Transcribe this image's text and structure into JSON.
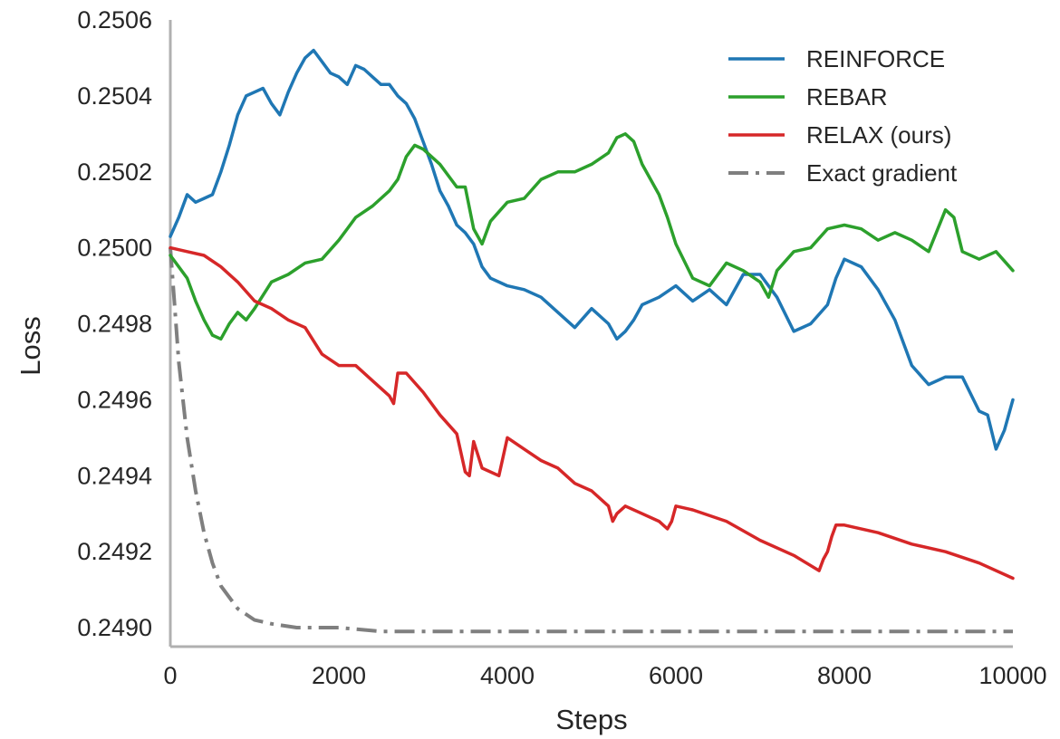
{
  "chart_data": {
    "type": "line",
    "title": "",
    "xlabel": "Steps",
    "ylabel": "Loss",
    "xlim": [
      0,
      10000
    ],
    "ylim": [
      0.24895,
      0.2506
    ],
    "xticks": [
      "0",
      "2000",
      "4000",
      "6000",
      "8000",
      "10000"
    ],
    "xtick_values": [
      0,
      2000,
      4000,
      6000,
      8000,
      10000
    ],
    "yticks": [
      "0.2490",
      "0.2492",
      "0.2494",
      "0.2496",
      "0.2498",
      "0.2500",
      "0.2502",
      "0.2504",
      "0.2506"
    ],
    "ytick_values": [
      0.249,
      0.2492,
      0.2494,
      0.2496,
      0.2498,
      0.25,
      0.2502,
      0.2504,
      0.2506
    ],
    "grid": false,
    "legend_position": "top-right",
    "series": [
      {
        "name": "REINFORCE",
        "color": "#1f77b4",
        "style": "solid",
        "x": [
          0,
          100,
          200,
          300,
          400,
          500,
          600,
          700,
          800,
          900,
          1000,
          1100,
          1200,
          1300,
          1400,
          1500,
          1600,
          1700,
          1800,
          1900,
          2000,
          2100,
          2200,
          2300,
          2400,
          2500,
          2600,
          2700,
          2800,
          2900,
          3000,
          3100,
          3200,
          3300,
          3400,
          3500,
          3600,
          3700,
          3800,
          3900,
          4000,
          4200,
          4400,
          4600,
          4800,
          5000,
          5200,
          5300,
          5400,
          5500,
          5600,
          5800,
          6000,
          6200,
          6400,
          6600,
          6800,
          7000,
          7200,
          7400,
          7600,
          7800,
          7900,
          8000,
          8200,
          8400,
          8600,
          8800,
          9000,
          9200,
          9400,
          9600,
          9700,
          9800,
          9900,
          10000
        ],
        "values": [
          0.25003,
          0.25008,
          0.25014,
          0.25012,
          0.25013,
          0.25014,
          0.2502,
          0.25027,
          0.25035,
          0.2504,
          0.25041,
          0.25042,
          0.25038,
          0.25035,
          0.25041,
          0.25046,
          0.2505,
          0.25052,
          0.25049,
          0.25046,
          0.25045,
          0.25043,
          0.25048,
          0.25047,
          0.25045,
          0.25043,
          0.25043,
          0.2504,
          0.25038,
          0.25034,
          0.25028,
          0.25022,
          0.25015,
          0.25011,
          0.25006,
          0.25004,
          0.25001,
          0.24995,
          0.24992,
          0.24991,
          0.2499,
          0.24989,
          0.24987,
          0.24983,
          0.24979,
          0.24984,
          0.2498,
          0.24976,
          0.24978,
          0.24981,
          0.24985,
          0.24987,
          0.2499,
          0.24986,
          0.24989,
          0.24985,
          0.24993,
          0.24993,
          0.24987,
          0.24978,
          0.2498,
          0.24985,
          0.24992,
          0.24997,
          0.24995,
          0.24989,
          0.24981,
          0.24969,
          0.24964,
          0.24966,
          0.24966,
          0.24957,
          0.24956,
          0.24947,
          0.24952,
          0.2496
        ]
      },
      {
        "name": "REBAR",
        "color": "#2ca02c",
        "style": "solid",
        "x": [
          0,
          100,
          200,
          300,
          400,
          500,
          600,
          700,
          800,
          900,
          1000,
          1200,
          1400,
          1600,
          1800,
          2000,
          2200,
          2400,
          2600,
          2700,
          2800,
          2900,
          3000,
          3200,
          3400,
          3500,
          3600,
          3700,
          3800,
          4000,
          4200,
          4400,
          4600,
          4800,
          5000,
          5200,
          5300,
          5400,
          5500,
          5600,
          5800,
          5900,
          6000,
          6200,
          6400,
          6600,
          6800,
          7000,
          7100,
          7200,
          7400,
          7600,
          7800,
          8000,
          8200,
          8400,
          8600,
          8800,
          9000,
          9200,
          9300,
          9400,
          9600,
          9800,
          10000
        ],
        "values": [
          0.24998,
          0.24995,
          0.24992,
          0.24986,
          0.24981,
          0.24977,
          0.24976,
          0.2498,
          0.24983,
          0.24981,
          0.24984,
          0.24991,
          0.24993,
          0.24996,
          0.24997,
          0.25002,
          0.25008,
          0.25011,
          0.25015,
          0.25018,
          0.25024,
          0.25027,
          0.25026,
          0.25022,
          0.25016,
          0.25016,
          0.25005,
          0.25001,
          0.25007,
          0.25012,
          0.25013,
          0.25018,
          0.2502,
          0.2502,
          0.25022,
          0.25025,
          0.25029,
          0.2503,
          0.25028,
          0.25022,
          0.25014,
          0.25008,
          0.25001,
          0.24992,
          0.2499,
          0.24996,
          0.24994,
          0.24991,
          0.24987,
          0.24994,
          0.24999,
          0.25,
          0.25005,
          0.25006,
          0.25005,
          0.25002,
          0.25004,
          0.25002,
          0.24999,
          0.2501,
          0.25008,
          0.24999,
          0.24997,
          0.24999,
          0.24994
        ]
      },
      {
        "name": "RELAX (ours)",
        "color": "#d62728",
        "style": "solid",
        "x": [
          0,
          200,
          400,
          600,
          800,
          1000,
          1200,
          1400,
          1600,
          1800,
          2000,
          2200,
          2400,
          2600,
          2650,
          2700,
          2800,
          3000,
          3200,
          3400,
          3500,
          3550,
          3600,
          3700,
          3900,
          4000,
          4200,
          4400,
          4600,
          4800,
          5000,
          5200,
          5250,
          5300,
          5400,
          5600,
          5800,
          5900,
          5950,
          6000,
          6200,
          6600,
          7000,
          7400,
          7700,
          7750,
          7800,
          7850,
          7900,
          8000,
          8400,
          8800,
          9200,
          9600,
          10000
        ],
        "values": [
          0.25,
          0.24999,
          0.24998,
          0.24995,
          0.24991,
          0.24986,
          0.24984,
          0.24981,
          0.24979,
          0.24972,
          0.24969,
          0.24969,
          0.24965,
          0.24961,
          0.24959,
          0.24967,
          0.24967,
          0.24962,
          0.24956,
          0.24951,
          0.24941,
          0.2494,
          0.24949,
          0.24942,
          0.2494,
          0.2495,
          0.24947,
          0.24944,
          0.24942,
          0.24938,
          0.24936,
          0.24932,
          0.24928,
          0.2493,
          0.24932,
          0.2493,
          0.24928,
          0.24926,
          0.24928,
          0.24932,
          0.24931,
          0.24928,
          0.24923,
          0.24919,
          0.24915,
          0.24918,
          0.2492,
          0.24924,
          0.24927,
          0.24927,
          0.24925,
          0.24922,
          0.2492,
          0.24917,
          0.24913
        ]
      },
      {
        "name": "Exact gradient",
        "color": "#7f7f7f",
        "style": "dashdot",
        "x": [
          0,
          50,
          100,
          200,
          300,
          400,
          500,
          600,
          800,
          1000,
          1200,
          1500,
          2000,
          2500,
          3000,
          4000,
          5000,
          6000,
          7000,
          8000,
          9000,
          10000
        ],
        "values": [
          0.25,
          0.24985,
          0.2497,
          0.2495,
          0.24936,
          0.24925,
          0.24917,
          0.24911,
          0.24905,
          0.24902,
          0.24901,
          0.249,
          0.249,
          0.24899,
          0.24899,
          0.24899,
          0.24899,
          0.24899,
          0.24899,
          0.24899,
          0.24899,
          0.24899
        ]
      }
    ]
  }
}
